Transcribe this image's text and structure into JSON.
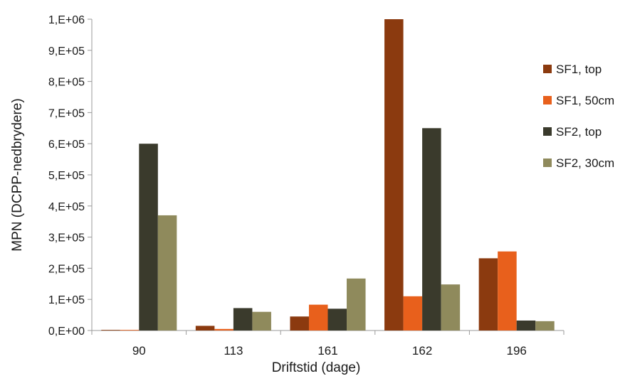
{
  "chart_data": {
    "type": "bar",
    "title": "",
    "xlabel": "Driftstid (dage)",
    "ylabel": "MPN (DCPP-nedbrydere)",
    "categories": [
      "90",
      "113",
      "161",
      "162",
      "196"
    ],
    "ylim": [
      0,
      1000000
    ],
    "yticks": [
      0,
      100000,
      200000,
      300000,
      400000,
      500000,
      600000,
      700000,
      800000,
      900000,
      1000000
    ],
    "ytick_labels": [
      "0,E+00",
      "1,E+05",
      "2,E+05",
      "3,E+05",
      "4,E+05",
      "5,E+05",
      "6,E+05",
      "7,E+05",
      "8,E+05",
      "9,E+05",
      "1,E+06"
    ],
    "grid": false,
    "legend_position": "right",
    "series": [
      {
        "name": "SF1, top",
        "color": "#8B3A0F",
        "values": [
          2000,
          15000,
          45000,
          1000000,
          232000
        ]
      },
      {
        "name": "SF1, 50cm",
        "color": "#E8601C",
        "values": [
          2000,
          5000,
          83000,
          110000,
          254000
        ]
      },
      {
        "name": "SF2, top",
        "color": "#3A3A2C",
        "values": [
          600000,
          72000,
          70000,
          650000,
          32000
        ]
      },
      {
        "name": "SF2, 30cm",
        "color": "#8F8A5C",
        "values": [
          370000,
          60000,
          167000,
          148000,
          30000
        ]
      }
    ]
  }
}
